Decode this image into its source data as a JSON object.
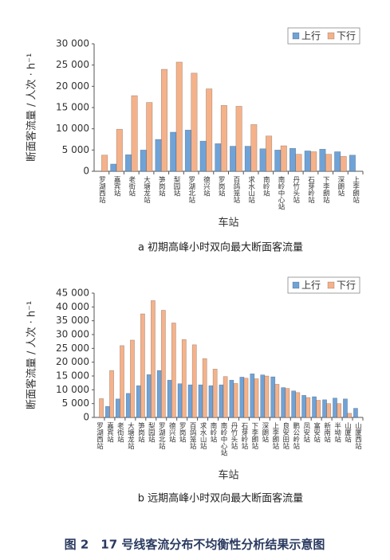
{
  "chart_data": [
    {
      "type": "bar",
      "caption": "a 初期高峰小时双向最大断面客流量",
      "x_label": "车站",
      "y_label": "断面客流量 / 人次 · h⁻¹",
      "categories": [
        "罗湖西站",
        "嘉宾站",
        "老街站",
        "大塘龙站",
        "笋岗站",
        "梨园站",
        "罗湖北站",
        "德兴站",
        "罗岗站",
        "百鸽笼站",
        "求水山站",
        "南岭站",
        "南岭中心站",
        "丹竹头站",
        "石芽岭站",
        "下李朗站",
        "深朗站",
        "上李朗站"
      ],
      "series": [
        {
          "name": "上行",
          "color": "#6fa3d8",
          "values": [
            null,
            1700,
            3900,
            5000,
            7500,
            9200,
            9700,
            7100,
            6500,
            5900,
            5900,
            5300,
            5000,
            5400,
            4800,
            5200,
            4600,
            3800
          ]
        },
        {
          "name": "下行",
          "color": "#f5b28a",
          "values": [
            3800,
            9900,
            17800,
            16200,
            24000,
            25700,
            23100,
            19400,
            15500,
            15300,
            11000,
            8300,
            6000,
            4000,
            4600,
            4000,
            3500,
            null
          ]
        }
      ],
      "ylim": [
        0,
        30000
      ],
      "yticks": [
        0,
        {
          "value": 5000,
          "label": "5 000"
        },
        {
          "value": 10000,
          "label": "10 000"
        },
        {
          "value": 15000,
          "label": "15 000"
        },
        {
          "value": 20000,
          "label": "20 000"
        },
        {
          "value": 25000,
          "label": "25 000"
        },
        {
          "value": 30000,
          "label": "30 000"
        }
      ],
      "legend": "upper right",
      "grid": false
    },
    {
      "type": "bar",
      "caption": "b 远期高峰小时双向最大断面客流量",
      "x_label": "车站",
      "y_label": "断面客流量 / 人次 · h⁻¹",
      "categories": [
        "罗湖西站",
        "嘉宾站",
        "老街站",
        "大塘龙站",
        "笋岗站",
        "梨园站",
        "罗湖北站",
        "德兴站",
        "罗岗站",
        "百鸽笼站",
        "求水山站",
        "南岭站",
        "南岭中心站",
        "丹竹头站",
        "石芽岭站",
        "下李朗站",
        "深朗站",
        "上李朗站",
        "良安田站",
        "鹏公岭站",
        "凤安站",
        "富安站",
        "新南站",
        "半坳站",
        "山厦站",
        "山厦西站"
      ],
      "series": [
        {
          "name": "上行",
          "color": "#6fa3d8",
          "values": [
            null,
            4000,
            6700,
            8700,
            11500,
            15500,
            17000,
            13500,
            12200,
            11800,
            11800,
            11500,
            11800,
            13500,
            14600,
            15800,
            15400,
            14700,
            10800,
            9600,
            8000,
            7500,
            6400,
            7000,
            6700,
            3300
          ]
        },
        {
          "name": "下行",
          "color": "#f5b28a",
          "values": [
            6800,
            17000,
            26000,
            28000,
            37500,
            42300,
            38800,
            34200,
            28200,
            26300,
            21300,
            17500,
            14800,
            12300,
            14200,
            14000,
            15000,
            12000,
            10500,
            9000,
            7200,
            6200,
            5000,
            5000,
            1500,
            null
          ]
        }
      ],
      "ylim": [
        0,
        45000
      ],
      "yticks": [
        0,
        {
          "value": 5000,
          "label": "5 000"
        },
        {
          "value": 10000,
          "label": "10 000"
        },
        {
          "value": 15000,
          "label": "15 000"
        },
        {
          "value": 20000,
          "label": "20 000"
        },
        {
          "value": 25000,
          "label": "25 000"
        },
        {
          "value": 30000,
          "label": "30 000"
        },
        {
          "value": 35000,
          "label": "35 000"
        },
        {
          "value": 40000,
          "label": "40 000"
        },
        {
          "value": 45000,
          "label": "45 000"
        }
      ],
      "legend": "upper right",
      "grid": false
    }
  ],
  "figure_caption": "图 2　17 号线客流分布不均衡性分析结果示意图"
}
